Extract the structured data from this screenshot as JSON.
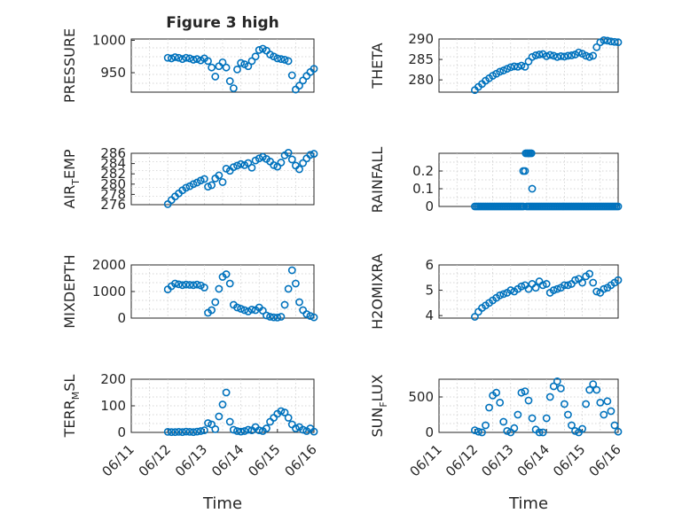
{
  "title": "Figure 3 high",
  "marker_color": "#0072BD",
  "chart_data": [
    {
      "type": "scatter",
      "ylabel": "PRESSURE",
      "ylim": [
        920,
        1002
      ],
      "yticks": [
        950,
        1000
      ],
      "ytick_labels": [
        "950",
        "1000"
      ],
      "xlim": [
        0,
        5
      ],
      "xticks": [],
      "xtick_labels": [],
      "xlabel": "",
      "series": [
        {
          "x": [
            1,
            1.1,
            1.2,
            1.3,
            1.4,
            1.5,
            1.6,
            1.7,
            1.8,
            1.9,
            2,
            2.1,
            2.2,
            2.3,
            2.4,
            2.5,
            2.6,
            2.7,
            2.8,
            2.9,
            3,
            3.1,
            3.2,
            3.3,
            3.4,
            3.5,
            3.6,
            3.7,
            3.8,
            3.9,
            4,
            4.1,
            4.2,
            4.3,
            4.4,
            4.5,
            4.6,
            4.7,
            4.8,
            4.9,
            5
          ],
          "y": [
            973,
            972,
            974,
            973,
            971,
            973,
            972,
            970,
            971,
            969,
            972,
            968,
            958,
            944,
            960,
            966,
            958,
            937,
            926,
            955,
            965,
            963,
            960,
            968,
            975,
            985,
            987,
            984,
            978,
            975,
            972,
            971,
            970,
            968,
            946,
            924,
            930,
            938,
            945,
            951,
            956
          ]
        }
      ]
    },
    {
      "type": "scatter",
      "ylabel": "THETA",
      "ylim": [
        277,
        290
      ],
      "yticks": [
        280,
        285,
        290
      ],
      "ytick_labels": [
        "280",
        "285",
        "290"
      ],
      "xlim": [
        0,
        5
      ],
      "xticks": [],
      "xtick_labels": [],
      "xlabel": "",
      "series": [
        {
          "x": [
            1,
            1.1,
            1.2,
            1.3,
            1.4,
            1.5,
            1.6,
            1.7,
            1.8,
            1.9,
            2,
            2.1,
            2.2,
            2.3,
            2.4,
            2.5,
            2.6,
            2.7,
            2.8,
            2.9,
            3,
            3.1,
            3.2,
            3.3,
            3.4,
            3.5,
            3.6,
            3.7,
            3.8,
            3.9,
            4,
            4.1,
            4.2,
            4.3,
            4.4,
            4.5,
            4.6,
            4.7,
            4.8,
            4.9,
            5
          ],
          "y": [
            277.5,
            278.3,
            279,
            279.8,
            280.4,
            281,
            281.5,
            282,
            282.3,
            282.7,
            283.1,
            283.3,
            283.2,
            283.5,
            283.2,
            284.5,
            285.6,
            286,
            286.2,
            286.3,
            285.8,
            286.1,
            285.9,
            285.6,
            285.8,
            285.7,
            285.9,
            286,
            286.2,
            286.7,
            286.4,
            285.9,
            285.6,
            285.9,
            288,
            289.2,
            289.7,
            289.6,
            289.4,
            289.3,
            289.2
          ]
        }
      ]
    },
    {
      "type": "scatter",
      "ylabel": "AIR_TEMP",
      "ylim": [
        276,
        286
      ],
      "yticks": [
        276,
        278,
        280,
        282,
        284,
        286
      ],
      "ytick_labels": [
        "276",
        "278",
        "280",
        "282",
        "284",
        "286"
      ],
      "xlim": [
        0,
        5
      ],
      "xticks": [],
      "xtick_labels": [],
      "xlabel": "",
      "series": [
        {
          "x": [
            1,
            1.1,
            1.2,
            1.3,
            1.4,
            1.5,
            1.6,
            1.7,
            1.8,
            1.9,
            2,
            2.1,
            2.2,
            2.3,
            2.4,
            2.5,
            2.6,
            2.7,
            2.8,
            2.9,
            3,
            3.1,
            3.2,
            3.3,
            3.4,
            3.5,
            3.6,
            3.7,
            3.8,
            3.9,
            4,
            4.1,
            4.2,
            4.3,
            4.4,
            4.5,
            4.6,
            4.7,
            4.8,
            4.9,
            5
          ],
          "y": [
            276.1,
            276.9,
            277.6,
            278.2,
            278.8,
            279.3,
            279.6,
            280,
            280.3,
            280.7,
            281,
            279.5,
            279.8,
            281.1,
            281.7,
            280.4,
            283,
            282.6,
            283.3,
            283.6,
            283.9,
            283.7,
            284.1,
            283.2,
            284.6,
            285,
            285.3,
            284.9,
            284.4,
            283.7,
            283.4,
            284.2,
            285.6,
            286.1,
            284.8,
            283.6,
            282.9,
            284.1,
            285,
            285.7,
            285.9
          ]
        }
      ]
    },
    {
      "type": "scatter",
      "ylabel": "RAINFALL",
      "ylim": [
        0,
        0.3
      ],
      "yticks": [
        0,
        0.1,
        0.2
      ],
      "ytick_labels": [
        "0",
        "0.1",
        "0.2"
      ],
      "xlim": [
        0,
        5
      ],
      "xticks": [],
      "xtick_labels": [],
      "xlabel": "",
      "series": [
        {
          "x": [
            1,
            1.05,
            1.1,
            1.15,
            1.2,
            1.25,
            1.3,
            1.35,
            1.4,
            1.45,
            1.5,
            1.55,
            1.6,
            1.65,
            1.7,
            1.75,
            1.8,
            1.85,
            1.9,
            1.95,
            2,
            2.05,
            2.1,
            2.15,
            2.2,
            2.25,
            2.3,
            2.35,
            2.35,
            2.4,
            2.45,
            2.5,
            2.55,
            2.6,
            2.6,
            2.65,
            2.7,
            2.75,
            2.8,
            2.85,
            2.9,
            2.95,
            3,
            3.05,
            3.1,
            3.15,
            3.2,
            3.25,
            3.3,
            3.35,
            3.4,
            3.45,
            3.5,
            3.55,
            3.6,
            3.65,
            3.7,
            3.75,
            3.8,
            3.85,
            3.9,
            3.95,
            4,
            4.05,
            4.1,
            4.15,
            4.2,
            4.25,
            4.3,
            4.35,
            4.4,
            4.45,
            4.5,
            4.55,
            4.6,
            4.65,
            4.7,
            4.75,
            4.8,
            4.85,
            4.9,
            4.95,
            5,
            2.42,
            2.46,
            2.5,
            2.54,
            2.58
          ],
          "y": [
            0,
            0,
            0,
            0,
            0,
            0,
            0,
            0,
            0,
            0,
            0,
            0,
            0,
            0,
            0,
            0,
            0,
            0,
            0,
            0,
            0,
            0,
            0,
            0,
            0,
            0,
            0,
            0,
            0.2,
            0.2,
            0,
            0,
            0,
            0,
            0.1,
            0,
            0,
            0,
            0,
            0,
            0,
            0,
            0,
            0,
            0,
            0,
            0,
            0,
            0,
            0,
            0,
            0,
            0,
            0,
            0,
            0,
            0,
            0,
            0,
            0,
            0,
            0,
            0,
            0,
            0,
            0,
            0,
            0,
            0,
            0,
            0,
            0,
            0,
            0,
            0,
            0,
            0,
            0,
            0,
            0,
            0,
            0,
            0,
            0.3,
            0.3,
            0.3,
            0.3,
            0.3
          ]
        }
      ]
    },
    {
      "type": "scatter",
      "ylabel": "MIXDEPTH",
      "ylim": [
        0,
        2000
      ],
      "yticks": [
        0,
        1000,
        2000
      ],
      "ytick_labels": [
        "0",
        "1000",
        "2000"
      ],
      "xlim": [
        0,
        5
      ],
      "xticks": [],
      "xtick_labels": [],
      "xlabel": "",
      "series": [
        {
          "x": [
            1,
            1.1,
            1.2,
            1.3,
            1.4,
            1.5,
            1.6,
            1.7,
            1.8,
            1.9,
            2,
            2.1,
            2.2,
            2.3,
            2.4,
            2.5,
            2.6,
            2.7,
            2.8,
            2.9,
            3,
            3.1,
            3.2,
            3.3,
            3.4,
            3.5,
            3.6,
            3.7,
            3.8,
            3.9,
            4,
            4.1,
            4.2,
            4.3,
            4.4,
            4.5,
            4.6,
            4.7,
            4.8,
            4.9,
            5
          ],
          "y": [
            1080,
            1200,
            1300,
            1270,
            1240,
            1260,
            1250,
            1240,
            1260,
            1230,
            1150,
            200,
            300,
            600,
            1100,
            1550,
            1650,
            1300,
            500,
            400,
            350,
            300,
            250,
            320,
            300,
            400,
            280,
            100,
            50,
            30,
            20,
            50,
            500,
            1100,
            1800,
            1300,
            600,
            300,
            150,
            80,
            30
          ]
        }
      ]
    },
    {
      "type": "scatter",
      "ylabel": "H2OMIXRA",
      "ylim": [
        3.9,
        6
      ],
      "yticks": [
        4,
        5,
        6
      ],
      "ytick_labels": [
        "4",
        "5",
        "6"
      ],
      "xlim": [
        0,
        5
      ],
      "xticks": [],
      "xtick_labels": [],
      "xlabel": "",
      "series": [
        {
          "x": [
            1,
            1.1,
            1.2,
            1.3,
            1.4,
            1.5,
            1.6,
            1.7,
            1.8,
            1.9,
            2,
            2.1,
            2.2,
            2.3,
            2.4,
            2.5,
            2.6,
            2.7,
            2.8,
            2.9,
            3,
            3.1,
            3.2,
            3.3,
            3.4,
            3.5,
            3.6,
            3.7,
            3.8,
            3.9,
            4,
            4.1,
            4.2,
            4.3,
            4.4,
            4.5,
            4.6,
            4.7,
            4.8,
            4.9,
            5
          ],
          "y": [
            3.95,
            4.15,
            4.3,
            4.4,
            4.5,
            4.6,
            4.7,
            4.8,
            4.85,
            4.9,
            5,
            4.95,
            5.05,
            5.15,
            5.2,
            5.05,
            5.25,
            5.1,
            5.35,
            5.2,
            5.25,
            4.9,
            5,
            5.05,
            5.1,
            5.2,
            5.2,
            5.25,
            5.4,
            5.45,
            5.3,
            5.55,
            5.65,
            5.3,
            4.95,
            4.9,
            5.05,
            5.1,
            5.2,
            5.3,
            5.4
          ]
        }
      ]
    },
    {
      "type": "scatter",
      "ylabel": "TERR_MSL",
      "ylim": [
        0,
        200
      ],
      "yticks": [
        0,
        100,
        200
      ],
      "ytick_labels": [
        "0",
        "100",
        "200"
      ],
      "xlim": [
        0,
        5
      ],
      "xticks": [
        0,
        1,
        2,
        3,
        4,
        5
      ],
      "xtick_labels": [
        "06/11",
        "06/12",
        "06/13",
        "06/14",
        "06/15",
        "06/16"
      ],
      "xlabel": "Time",
      "series": [
        {
          "x": [
            1,
            1.1,
            1.2,
            1.3,
            1.4,
            1.5,
            1.6,
            1.7,
            1.8,
            1.9,
            2,
            2.1,
            2.2,
            2.3,
            2.4,
            2.5,
            2.6,
            2.7,
            2.8,
            2.9,
            3,
            3.1,
            3.2,
            3.3,
            3.4,
            3.5,
            3.6,
            3.7,
            3.8,
            3.9,
            4,
            4.1,
            4.2,
            4.3,
            4.4,
            4.5,
            4.6,
            4.7,
            4.8,
            4.9,
            5
          ],
          "y": [
            2,
            1,
            1,
            2,
            1,
            3,
            2,
            1,
            3,
            5,
            8,
            35,
            30,
            12,
            60,
            105,
            150,
            40,
            10,
            5,
            3,
            5,
            10,
            8,
            20,
            8,
            5,
            15,
            40,
            55,
            70,
            80,
            75,
            55,
            30,
            15,
            20,
            10,
            5,
            15,
            3
          ]
        }
      ]
    },
    {
      "type": "scatter",
      "ylabel": "SUN_FLUX",
      "ylim": [
        0,
        750
      ],
      "yticks": [
        0,
        500
      ],
      "ytick_labels": [
        "0",
        "500"
      ],
      "xlim": [
        0,
        5
      ],
      "xticks": [
        0,
        1,
        2,
        3,
        4,
        5
      ],
      "xtick_labels": [
        "06/11",
        "06/12",
        "06/13",
        "06/14",
        "06/15",
        "06/16"
      ],
      "xlabel": "Time",
      "series": [
        {
          "x": [
            1,
            1.1,
            1.2,
            1.3,
            1.4,
            1.5,
            1.6,
            1.7,
            1.8,
            1.9,
            2,
            2.1,
            2.2,
            2.3,
            2.4,
            2.5,
            2.6,
            2.7,
            2.8,
            2.9,
            3,
            3.1,
            3.2,
            3.3,
            3.4,
            3.5,
            3.6,
            3.7,
            3.8,
            3.9,
            4,
            4.1,
            4.2,
            4.3,
            4.4,
            4.5,
            4.6,
            4.7,
            4.8,
            4.9,
            5
          ],
          "y": [
            30,
            10,
            0,
            100,
            350,
            520,
            560,
            420,
            150,
            20,
            0,
            60,
            250,
            560,
            580,
            450,
            200,
            40,
            0,
            0,
            200,
            500,
            650,
            720,
            620,
            400,
            250,
            100,
            20,
            0,
            50,
            400,
            600,
            680,
            600,
            420,
            250,
            440,
            300,
            100,
            10
          ]
        }
      ]
    }
  ]
}
